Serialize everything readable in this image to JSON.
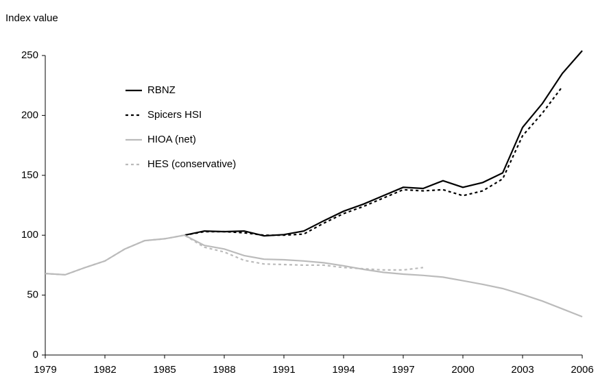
{
  "chart_data": {
    "type": "line",
    "y_label": "Index value",
    "x": [
      1979,
      1980,
      1981,
      1982,
      1983,
      1984,
      1985,
      1986,
      1987,
      1988,
      1989,
      1990,
      1991,
      1992,
      1993,
      1994,
      1995,
      1996,
      1997,
      1998,
      1999,
      2000,
      2001,
      2002,
      2003,
      2004,
      2005,
      2006
    ],
    "series": [
      {
        "name": "RBNZ",
        "color": "#000000",
        "style": "solid",
        "values": [
          null,
          null,
          null,
          null,
          null,
          null,
          null,
          100,
          103.5,
          103,
          103.5,
          99.5,
          100.5,
          103.5,
          112,
          120,
          126,
          133,
          140,
          139,
          145.5,
          140,
          144,
          152,
          190,
          210,
          235,
          254
        ]
      },
      {
        "name": "Spicers HSI",
        "color": "#000000",
        "style": "dashed",
        "values": [
          null,
          null,
          null,
          null,
          null,
          null,
          null,
          100,
          103,
          103,
          102,
          100,
          100,
          101,
          110,
          118,
          124,
          131,
          138,
          137,
          138,
          133,
          137,
          147,
          183,
          202,
          224,
          null
        ]
      },
      {
        "name": "HIOA (net)",
        "color": "#bbbbbb",
        "style": "solid",
        "values": [
          68,
          67,
          73,
          78.5,
          88.5,
          95.5,
          97,
          100,
          91.5,
          88.5,
          83,
          80,
          79.5,
          78.5,
          77,
          74.5,
          71.5,
          69,
          67.5,
          66.5,
          65,
          62,
          59,
          55.5,
          50.5,
          45,
          38.5,
          32
        ]
      },
      {
        "name": "HES (conservative)",
        "color": "#bbbbbb",
        "style": "dashed",
        "values": [
          68,
          67,
          73,
          78.5,
          88.5,
          95.5,
          97,
          100,
          90,
          86,
          79,
          76,
          75.5,
          75,
          75,
          73,
          72,
          71,
          71,
          73,
          null,
          null,
          null,
          null,
          null,
          null,
          null,
          null
        ]
      }
    ],
    "xlim": [
      1979,
      2006
    ],
    "xticks": [
      1979,
      1982,
      1985,
      1988,
      1991,
      1994,
      1997,
      2000,
      2003,
      2006
    ],
    "ylim": [
      0,
      250
    ],
    "yticks": [
      0,
      50,
      100,
      150,
      200,
      250
    ],
    "legend": "upper-left"
  }
}
